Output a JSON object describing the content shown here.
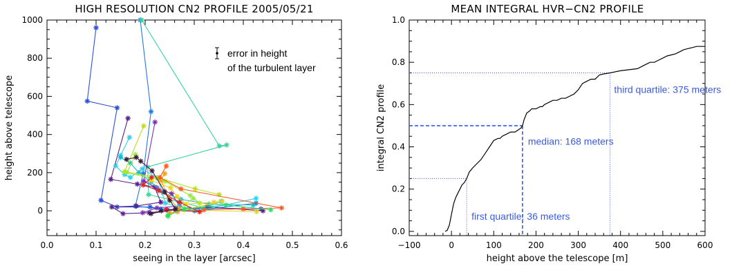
{
  "chart_data": [
    {
      "type": "scatter",
      "title": "HIGH RESOLUTION CN2 PROFILE 2005/05/21",
      "xlabel": "seeing in the layer [arcsec]",
      "ylabel": "height above telescope",
      "xlim": [
        0.0,
        0.6
      ],
      "ylim": [
        -130,
        1000
      ],
      "xticks": [
        "0.0",
        "0.1",
        "0.2",
        "0.3",
        "0.4",
        "0.5",
        "0.6"
      ],
      "yticks": [
        "0",
        "200",
        "400",
        "600",
        "800",
        "1000"
      ],
      "legend": {
        "line1": "error in height",
        "line2": "of the turbulent layer",
        "placement": "top-right"
      },
      "series": [
        {
          "color": "#2b4fd8",
          "points": [
            [
              0.1,
              960
            ],
            [
              0.082,
              575
            ],
            [
              0.143,
              540
            ],
            [
              0.11,
              55
            ],
            [
              0.143,
              20
            ],
            [
              0.21,
              20
            ],
            [
              0.245,
              5
            ],
            [
              0.29,
              10
            ],
            [
              0.33,
              15
            ],
            [
              0.436,
              10
            ]
          ]
        },
        {
          "color": "#1f78e8",
          "points": [
            [
              0.19,
              1000
            ],
            [
              0.212,
              520
            ],
            [
              0.196,
              195
            ],
            [
              0.18,
              25
            ],
            [
              0.232,
              10
            ],
            [
              0.301,
              0
            ],
            [
              0.426,
              40
            ]
          ]
        },
        {
          "color": "#35d49c",
          "points": [
            [
              0.193,
              1000
            ],
            [
              0.351,
              340
            ],
            [
              0.366,
              345
            ],
            [
              0.205,
              230
            ],
            [
              0.207,
              85
            ],
            [
              0.321,
              15
            ],
            [
              0.355,
              50
            ]
          ]
        },
        {
          "color": "#5b1f8c",
          "points": [
            [
              0.165,
              485
            ],
            [
              0.13,
              165
            ],
            [
              0.184,
              140
            ],
            [
              0.219,
              125
            ],
            [
              0.232,
              45
            ],
            [
              0.182,
              25
            ],
            [
              0.132,
              20
            ],
            [
              0.155,
              -15
            ],
            [
              0.208,
              -10
            ],
            [
              0.262,
              5
            ],
            [
              0.326,
              20
            ],
            [
              0.44,
              0
            ]
          ]
        },
        {
          "color": "#7a2fb0",
          "points": [
            [
              0.22,
              465
            ],
            [
              0.197,
              155
            ],
            [
              0.224,
              120
            ],
            [
              0.254,
              90
            ],
            [
              0.27,
              25
            ],
            [
              0.224,
              15
            ],
            [
              0.195,
              -10
            ]
          ]
        },
        {
          "color": "#2fd0e8",
          "points": [
            [
              0.168,
              385
            ],
            [
              0.15,
              290
            ],
            [
              0.14,
              235
            ],
            [
              0.158,
              190
            ],
            [
              0.17,
              175
            ],
            [
              0.194,
              220
            ],
            [
              0.226,
              170
            ],
            [
              0.241,
              40
            ],
            [
              0.268,
              20
            ],
            [
              0.317,
              5
            ],
            [
              0.426,
              65
            ]
          ]
        },
        {
          "color": "#1fb8c8",
          "points": [
            [
              0.15,
              280
            ],
            [
              0.17,
              250
            ],
            [
              0.187,
              200
            ],
            [
              0.212,
              150
            ],
            [
              0.236,
              95
            ],
            [
              0.273,
              60
            ],
            [
              0.33,
              35
            ],
            [
              0.42,
              30
            ]
          ]
        },
        {
          "color": "#b8e01a",
          "points": [
            [
              0.197,
              445
            ],
            [
              0.158,
              205
            ],
            [
              0.224,
              175
            ],
            [
              0.302,
              115
            ],
            [
              0.351,
              85
            ]
          ]
        },
        {
          "color": "#9ae83a",
          "points": [
            [
              0.18,
              295
            ],
            [
              0.163,
              200
            ],
            [
              0.24,
              155
            ],
            [
              0.292,
              80
            ],
            [
              0.311,
              40
            ],
            [
              0.298,
              65
            ],
            [
              0.247,
              -30
            ]
          ]
        },
        {
          "color": "#f0d21a",
          "points": [
            [
              0.212,
              160
            ],
            [
              0.252,
              120
            ],
            [
              0.265,
              75
            ],
            [
              0.283,
              35
            ],
            [
              0.34,
              45
            ],
            [
              0.357,
              50
            ],
            [
              0.28,
              5
            ],
            [
              0.427,
              -5
            ]
          ]
        },
        {
          "color": "#f0a020",
          "points": [
            [
              0.24,
              195
            ],
            [
              0.232,
              160
            ],
            [
              0.248,
              70
            ],
            [
              0.268,
              10
            ],
            [
              0.266,
              -5
            ],
            [
              0.25,
              -10
            ]
          ]
        },
        {
          "color": "#ff5a1a",
          "points": [
            [
              0.243,
              235
            ],
            [
              0.23,
              175
            ],
            [
              0.273,
              115
            ],
            [
              0.478,
              15
            ],
            [
              0.4,
              10
            ],
            [
              0.32,
              5
            ]
          ]
        },
        {
          "color": "#e02020",
          "points": [
            [
              0.213,
              175
            ],
            [
              0.196,
              135
            ],
            [
              0.228,
              105
            ],
            [
              0.27,
              45
            ],
            [
              0.311,
              -5
            ],
            [
              0.243,
              5
            ]
          ]
        },
        {
          "color": "#3a1a3a",
          "points": [
            [
              0.162,
              270
            ],
            [
              0.182,
              280
            ],
            [
              0.191,
              260
            ],
            [
              0.214,
              210
            ],
            [
              0.24,
              100
            ],
            [
              0.25,
              55
            ],
            [
              0.262,
              10
            ],
            [
              0.212,
              -15
            ],
            [
              0.233,
              0
            ]
          ]
        },
        {
          "color": "#20e070",
          "points": [
            [
              0.246,
              -25
            ],
            [
              0.28,
              10
            ],
            [
              0.365,
              30
            ],
            [
              0.456,
              5
            ]
          ]
        }
      ]
    },
    {
      "type": "line",
      "title": "MEAN INTEGRAL HVR−CN2 PROFILE",
      "xlabel": "height above the telescope [m]",
      "ylabel": "integral CN2 profile",
      "xlim": [
        -100,
        600
      ],
      "ylim": [
        -0.02,
        1.0
      ],
      "xticks": [
        "−100",
        "0",
        "100",
        "200",
        "300",
        "400",
        "500",
        "600"
      ],
      "yticks": [
        "0.0",
        "0.2",
        "0.4",
        "0.6",
        "0.8",
        "1.0"
      ],
      "x": [
        -15,
        -10,
        -5,
        0,
        5,
        10,
        15,
        20,
        25,
        30,
        36,
        42,
        50,
        60,
        70,
        80,
        90,
        100,
        110,
        115,
        120,
        130,
        140,
        150,
        158,
        165,
        168,
        172,
        178,
        185,
        190,
        200,
        210,
        215,
        220,
        230,
        240,
        250,
        260,
        270,
        280,
        290,
        300,
        310,
        320,
        330,
        340,
        350,
        360,
        375,
        400,
        420,
        440,
        450,
        460,
        470,
        480,
        490,
        500,
        510,
        520,
        530,
        540,
        550,
        560,
        570,
        580,
        590,
        600
      ],
      "y": [
        0.0,
        0.005,
        0.03,
        0.08,
        0.13,
        0.16,
        0.18,
        0.2,
        0.22,
        0.23,
        0.25,
        0.28,
        0.3,
        0.32,
        0.34,
        0.37,
        0.4,
        0.43,
        0.44,
        0.44,
        0.45,
        0.46,
        0.47,
        0.47,
        0.48,
        0.49,
        0.5,
        0.53,
        0.56,
        0.57,
        0.58,
        0.58,
        0.59,
        0.59,
        0.6,
        0.61,
        0.62,
        0.62,
        0.63,
        0.63,
        0.64,
        0.65,
        0.67,
        0.7,
        0.71,
        0.72,
        0.72,
        0.74,
        0.745,
        0.75,
        0.76,
        0.765,
        0.77,
        0.78,
        0.79,
        0.8,
        0.8,
        0.81,
        0.82,
        0.83,
        0.835,
        0.84,
        0.85,
        0.86,
        0.865,
        0.87,
        0.875,
        0.875,
        0.875
      ],
      "quartiles": [
        {
          "label": "first quartile: 36 meters",
          "x": 36,
          "y": 0.25,
          "style": "dotted"
        },
        {
          "label": "median: 168 meters",
          "x": 168,
          "y": 0.5,
          "style": "dashed"
        },
        {
          "label": "third quartile: 375 meters",
          "x": 375,
          "y": 0.75,
          "style": "dotted"
        }
      ]
    }
  ]
}
